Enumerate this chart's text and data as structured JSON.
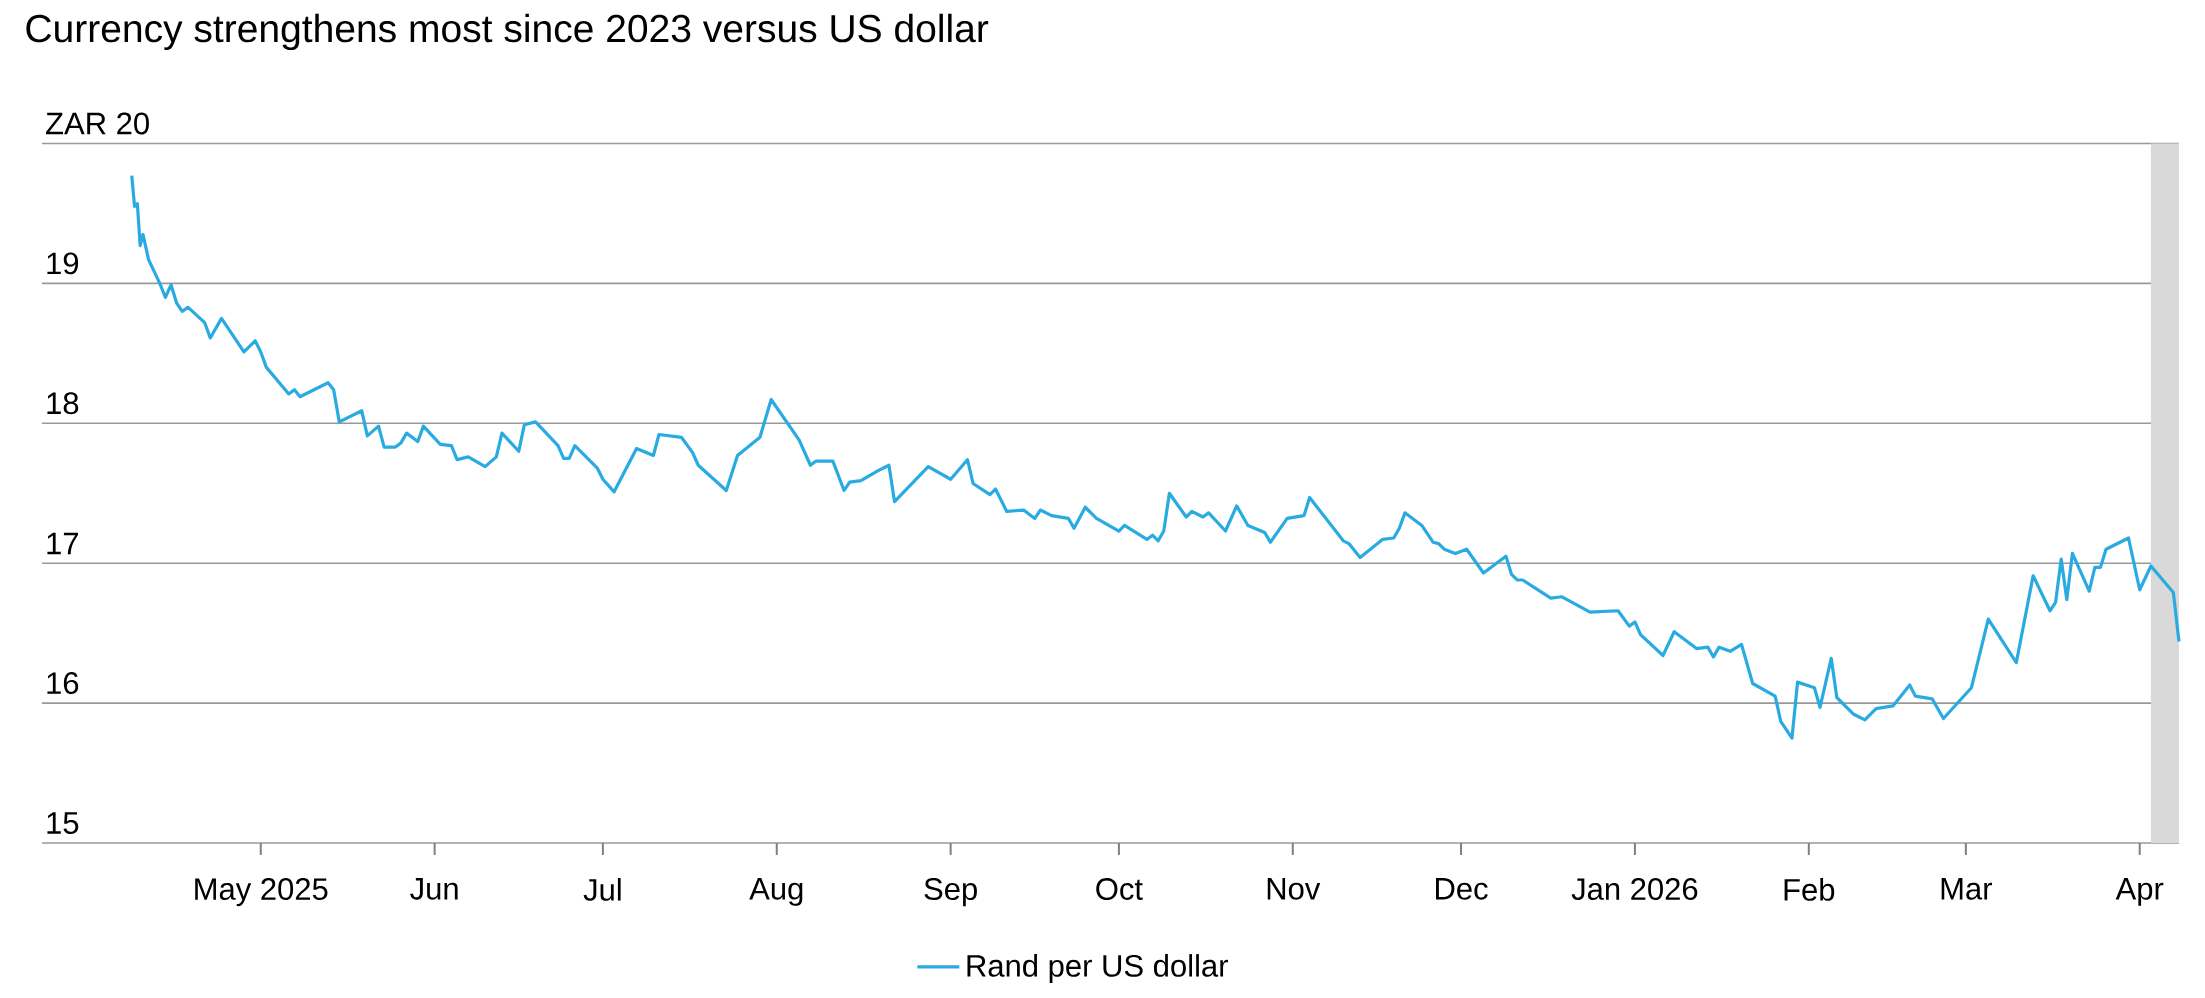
{
  "chart_data": {
    "type": "line",
    "title": "Currency strengthens most since 2023 versus US dollar",
    "x": [
      "2025-04-08T00:00",
      "2025-04-08T12:00",
      "2025-04-09T00:00",
      "2025-04-09T12:00",
      "2025-04-10",
      "2025-04-11",
      "2025-04-13",
      "2025-04-14",
      "2025-04-15",
      "2025-04-16",
      "2025-04-17",
      "2025-04-18",
      "2025-04-21",
      "2025-04-22",
      "2025-04-24",
      "2025-04-28",
      "2025-04-30",
      "2025-05-01",
      "2025-05-02",
      "2025-05-06",
      "2025-05-07",
      "2025-05-08",
      "2025-05-13",
      "2025-05-14",
      "2025-05-15",
      "2025-05-19",
      "2025-05-20",
      "2025-05-22",
      "2025-05-23",
      "2025-05-25",
      "2025-05-26",
      "2025-05-27",
      "2025-05-29",
      "2025-05-30",
      "2025-06-02",
      "2025-06-04",
      "2025-06-05",
      "2025-06-07",
      "2025-06-10",
      "2025-06-12",
      "2025-06-13",
      "2025-06-16",
      "2025-06-17",
      "2025-06-19",
      "2025-06-23",
      "2025-06-24",
      "2025-06-25",
      "2025-06-26",
      "2025-06-30",
      "2025-07-01",
      "2025-07-03",
      "2025-07-07",
      "2025-07-10",
      "2025-07-11",
      "2025-07-15",
      "2025-07-17",
      "2025-07-18",
      "2025-07-23",
      "2025-07-25",
      "2025-07-29",
      "2025-07-31",
      "2025-08-05",
      "2025-08-07",
      "2025-08-08",
      "2025-08-11",
      "2025-08-13",
      "2025-08-14",
      "2025-08-16",
      "2025-08-19",
      "2025-08-21",
      "2025-08-22",
      "2025-08-28",
      "2025-09-01",
      "2025-09-04",
      "2025-09-05",
      "2025-09-08",
      "2025-09-09",
      "2025-09-11",
      "2025-09-14",
      "2025-09-16",
      "2025-09-17",
      "2025-09-19",
      "2025-09-22",
      "2025-09-23",
      "2025-09-25",
      "2025-09-27",
      "2025-10-01",
      "2025-10-02",
      "2025-10-06",
      "2025-10-07",
      "2025-10-08",
      "2025-10-09",
      "2025-10-10",
      "2025-10-13",
      "2025-10-14",
      "2025-10-16",
      "2025-10-17",
      "2025-10-20",
      "2025-10-22",
      "2025-10-24",
      "2025-10-27",
      "2025-10-28",
      "2025-10-31",
      "2025-11-03",
      "2025-11-04",
      "2025-11-10",
      "2025-11-11",
      "2025-11-13",
      "2025-11-17",
      "2025-11-19",
      "2025-11-20",
      "2025-11-21",
      "2025-11-24",
      "2025-11-26",
      "2025-11-27",
      "2025-11-28",
      "2025-11-30",
      "2025-12-02",
      "2025-12-05",
      "2025-12-09",
      "2025-12-10",
      "2025-12-11",
      "2025-12-12",
      "2025-12-17",
      "2025-12-19",
      "2025-12-24",
      "2025-12-29",
      "2025-12-31",
      "2026-01-01",
      "2026-01-02",
      "2026-01-06",
      "2026-01-08",
      "2026-01-12",
      "2026-01-14",
      "2026-01-15",
      "2026-01-16",
      "2026-01-18",
      "2026-01-20",
      "2026-01-22",
      "2026-01-26",
      "2026-01-27",
      "2026-01-29",
      "2026-01-30",
      "2026-02-02",
      "2026-02-03",
      "2026-02-05",
      "2026-02-06",
      "2026-02-09",
      "2026-02-11",
      "2026-02-13",
      "2026-02-16",
      "2026-02-19",
      "2026-02-20",
      "2026-02-23",
      "2026-02-25",
      "2026-03-02",
      "2026-03-05",
      "2026-03-10",
      "2026-03-13",
      "2026-03-16",
      "2026-03-17",
      "2026-03-18",
      "2026-03-19",
      "2026-03-20",
      "2026-03-23",
      "2026-03-24",
      "2026-03-25",
      "2026-03-26",
      "2026-03-30",
      "2026-04-01",
      "2026-04-03",
      "2026-04-07",
      "2026-04-08"
    ],
    "series": [
      {
        "name": "Rand per US dollar",
        "color": "#29abe2",
        "values": [
          19.77,
          19.55,
          19.57,
          19.27,
          19.35,
          19.17,
          19.0,
          18.9,
          18.99,
          18.86,
          18.8,
          18.83,
          18.72,
          18.61,
          18.75,
          18.51,
          18.59,
          18.51,
          18.4,
          18.21,
          18.24,
          18.19,
          18.29,
          18.24,
          18.01,
          18.09,
          17.91,
          17.98,
          17.83,
          17.83,
          17.86,
          17.93,
          17.87,
          17.98,
          17.85,
          17.84,
          17.74,
          17.76,
          17.69,
          17.76,
          17.93,
          17.8,
          17.99,
          18.01,
          17.84,
          17.75,
          17.75,
          17.84,
          17.68,
          17.6,
          17.51,
          17.82,
          17.77,
          17.92,
          17.9,
          17.79,
          17.7,
          17.52,
          17.77,
          17.9,
          18.17,
          17.88,
          17.7,
          17.73,
          17.73,
          17.52,
          17.58,
          17.59,
          17.66,
          17.7,
          17.44,
          17.69,
          17.6,
          17.74,
          17.57,
          17.49,
          17.53,
          17.37,
          17.38,
          17.32,
          17.38,
          17.34,
          17.32,
          17.25,
          17.4,
          17.32,
          17.23,
          17.27,
          17.17,
          17.2,
          17.16,
          17.23,
          17.5,
          17.33,
          17.37,
          17.33,
          17.36,
          17.23,
          17.41,
          17.27,
          17.22,
          17.15,
          17.32,
          17.34,
          17.47,
          17.16,
          17.14,
          17.04,
          17.17,
          17.18,
          17.25,
          17.36,
          17.27,
          17.15,
          17.14,
          17.1,
          17.07,
          17.1,
          16.93,
          17.05,
          16.92,
          16.88,
          16.88,
          16.75,
          16.76,
          16.65,
          16.66,
          16.55,
          16.58,
          16.49,
          16.34,
          16.51,
          16.39,
          16.4,
          16.33,
          16.4,
          16.37,
          16.42,
          16.14,
          16.05,
          15.87,
          15.75,
          16.15,
          16.11,
          15.97,
          16.32,
          16.04,
          15.92,
          15.88,
          15.96,
          15.98,
          16.13,
          16.05,
          16.03,
          15.89,
          16.11,
          16.6,
          16.29,
          16.91,
          16.66,
          16.72,
          17.03,
          16.74,
          17.07,
          16.8,
          16.97,
          16.97,
          17.1,
          17.18,
          16.81,
          16.98,
          16.79,
          16.44
        ]
      }
    ],
    "xlim": [
      "2025-03-23",
      "2026-04-08"
    ],
    "xticks": [
      {
        "value": "2025-05-01",
        "label": "May 2025"
      },
      {
        "value": "2025-06-01",
        "label": "Jun"
      },
      {
        "value": "2025-07-01",
        "label": "Jul"
      },
      {
        "value": "2025-08-01",
        "label": "Aug"
      },
      {
        "value": "2025-09-01",
        "label": "Sep"
      },
      {
        "value": "2025-10-01",
        "label": "Oct"
      },
      {
        "value": "2025-11-01",
        "label": "Nov"
      },
      {
        "value": "2025-12-01",
        "label": "Dec"
      },
      {
        "value": "2026-01-01",
        "label": "Jan 2026"
      },
      {
        "value": "2026-02-01",
        "label": "Feb"
      },
      {
        "value": "2026-03-01",
        "label": "Mar"
      },
      {
        "value": "2026-04-01",
        "label": "Apr"
      }
    ],
    "ylim": [
      15,
      20
    ],
    "yticks": [
      15,
      16,
      17,
      18,
      19,
      {
        "value": 20,
        "label": "ZAR 20"
      }
    ],
    "bands": [
      {
        "axis": "x",
        "from": "2026-04-03",
        "to": "2026-04-08",
        "color": "#d9d9d9"
      }
    ],
    "grid": "y",
    "legend": "bottom",
    "line_style": "solid",
    "marker": "none"
  }
}
